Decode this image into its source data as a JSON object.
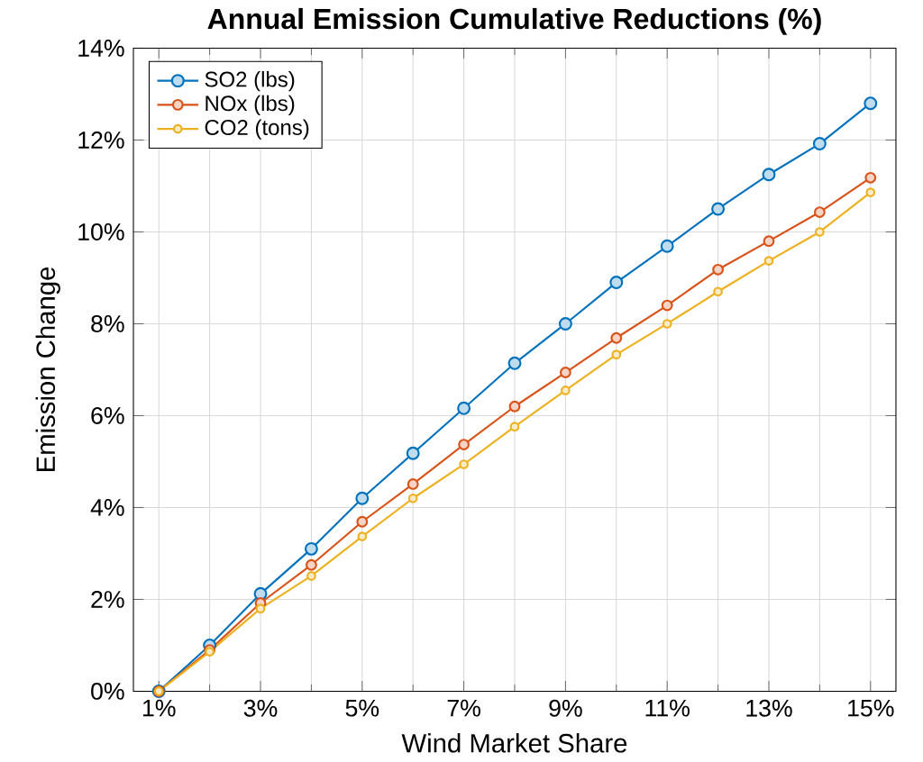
{
  "chart_data": {
    "type": "line",
    "title": "Annual Emission Cumulative Reductions (%)",
    "xlabel": "Wind Market Share",
    "ylabel": "Emission Change",
    "x": [
      1,
      2,
      3,
      4,
      5,
      6,
      7,
      8,
      9,
      10,
      11,
      12,
      13,
      14,
      15
    ],
    "series": [
      {
        "name": "SO2 (lbs)",
        "color": "#0072bd",
        "values": [
          0,
          1.0,
          2.12,
          3.1,
          4.2,
          5.18,
          6.16,
          7.14,
          8.0,
          8.9,
          9.69,
          10.5,
          11.25,
          11.92,
          12.8
        ]
      },
      {
        "name": "NOx (lbs)",
        "color": "#d95319",
        "values": [
          0,
          0.9,
          1.92,
          2.75,
          3.69,
          4.51,
          5.37,
          6.2,
          6.94,
          7.69,
          8.4,
          9.18,
          9.8,
          10.43,
          11.18
        ]
      },
      {
        "name": "CO2 (tons)",
        "color": "#edb120",
        "values": [
          0,
          0.86,
          1.8,
          2.51,
          3.37,
          4.2,
          4.94,
          5.76,
          6.55,
          7.33,
          8.0,
          8.7,
          9.37,
          10.0,
          10.86
        ]
      }
    ],
    "xlim": [
      0.5,
      15.5
    ],
    "ylim": [
      0,
      14
    ],
    "xticks": [
      {
        "value": 1,
        "label": "1%"
      },
      {
        "value": 3,
        "label": "3%"
      },
      {
        "value": 5,
        "label": "5%"
      },
      {
        "value": 7,
        "label": "7%"
      },
      {
        "value": 9,
        "label": "9%"
      },
      {
        "value": 11,
        "label": "11%"
      },
      {
        "value": 13,
        "label": "13%"
      },
      {
        "value": 15,
        "label": "15%"
      }
    ],
    "yticks": [
      {
        "value": 0,
        "label": "0%"
      },
      {
        "value": 2,
        "label": "2%"
      },
      {
        "value": 4,
        "label": "4%"
      },
      {
        "value": 6,
        "label": "6%"
      },
      {
        "value": 8,
        "label": "8%"
      },
      {
        "value": 10,
        "label": "10%"
      },
      {
        "value": 12,
        "label": "12%"
      },
      {
        "value": 14,
        "label": "14%"
      }
    ],
    "grid": true,
    "legend": "top left",
    "marker": "circle",
    "line_style": "solid"
  }
}
